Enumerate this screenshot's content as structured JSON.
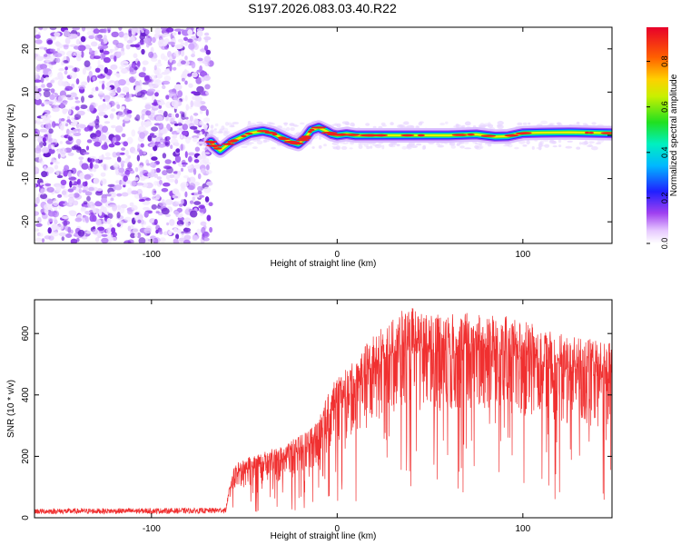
{
  "title": "S197.2026.083.03.40.R22",
  "chart_data": [
    {
      "type": "heatmap",
      "xlabel": "Height of straight line (km)",
      "ylabel": "Frequency (Hz)",
      "xlim": [
        -163,
        148
      ],
      "ylim": [
        -25,
        25
      ],
      "x_ticks": [
        -100,
        0,
        100
      ],
      "y_ticks": [
        -20,
        -10,
        0,
        10,
        20
      ],
      "noise_region_x": [
        -163,
        -68
      ],
      "tone_region_x": [
        -68,
        148
      ],
      "tone_path": [
        [
          -68,
          -1.5
        ],
        [
          -66,
          -2.5
        ],
        [
          -63,
          -3.5
        ],
        [
          -60,
          -2.5
        ],
        [
          -57,
          -1.5
        ],
        [
          -52,
          -0.5
        ],
        [
          -47,
          0.5
        ],
        [
          -40,
          1.0
        ],
        [
          -35,
          0.5
        ],
        [
          -30,
          -0.5
        ],
        [
          -25,
          -1.5
        ],
        [
          -21,
          -2.0
        ],
        [
          -17,
          -0.5
        ],
        [
          -14,
          1.2
        ],
        [
          -10,
          1.8
        ],
        [
          -6,
          1.0
        ],
        [
          -3,
          0.3
        ],
        [
          0,
          0.0
        ],
        [
          5,
          0.3
        ],
        [
          10,
          0.0
        ],
        [
          20,
          0.0
        ],
        [
          40,
          0.0
        ],
        [
          60,
          0.0
        ],
        [
          75,
          0.2
        ],
        [
          85,
          -0.3
        ],
        [
          92,
          -0.2
        ],
        [
          100,
          0.5
        ],
        [
          110,
          0.6
        ],
        [
          125,
          0.7
        ],
        [
          148,
          0.5
        ]
      ],
      "colorbar": {
        "label": "Normalized spectral amplitude",
        "ticks": [
          0.0,
          0.2,
          0.4,
          0.6,
          0.8
        ],
        "range": [
          0.0,
          0.95
        ]
      }
    },
    {
      "type": "line",
      "xlabel": "Height of straight line (km)",
      "ylabel": "SNR (10 * v/v)",
      "xlim": [
        -163,
        148
      ],
      "ylim": [
        0,
        710
      ],
      "x_ticks": [
        -100,
        0,
        100
      ],
      "y_ticks": [
        0,
        200,
        400,
        600
      ],
      "color": "#f03030",
      "envelope": [
        [
          -163,
          18
        ],
        [
          -70,
          20
        ],
        [
          -60,
          22
        ],
        [
          -56,
          160
        ],
        [
          -50,
          180
        ],
        [
          -40,
          200
        ],
        [
          -30,
          220
        ],
        [
          -20,
          250
        ],
        [
          -10,
          300
        ],
        [
          -5,
          380
        ],
        [
          0,
          430
        ],
        [
          10,
          480
        ],
        [
          20,
          570
        ],
        [
          30,
          620
        ],
        [
          40,
          640
        ],
        [
          60,
          620
        ],
        [
          80,
          630
        ],
        [
          100,
          600
        ],
        [
          120,
          560
        ],
        [
          140,
          540
        ],
        [
          148,
          530
        ]
      ]
    }
  ],
  "colors": {
    "signal": "#f03030",
    "noise_purple": "#8b2fe8",
    "axis": "#000000"
  }
}
